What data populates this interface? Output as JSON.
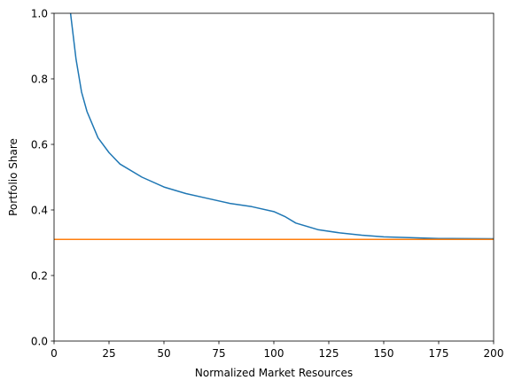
{
  "chart_data": {
    "type": "line",
    "xlabel": "Normalized Market Resources",
    "ylabel": "Portfolio Share",
    "xlim": [
      0,
      200
    ],
    "ylim": [
      0,
      1
    ],
    "xticks": [
      0,
      25,
      50,
      75,
      100,
      125,
      150,
      175,
      200
    ],
    "yticks": [
      {
        "value": 0,
        "label": "0.0"
      },
      0.2,
      0.4,
      0.6,
      0.8,
      {
        "value": 1,
        "label": "1.0"
      }
    ],
    "series": [
      {
        "color": "#1f77b4",
        "x": [
          7.5,
          10,
          12.5,
          15,
          20,
          25,
          30,
          40,
          50,
          60,
          70,
          80,
          90,
          100,
          105,
          110,
          120,
          130,
          140,
          150,
          175,
          200
        ],
        "values": [
          1.0,
          0.86,
          0.76,
          0.7,
          0.62,
          0.575,
          0.54,
          0.5,
          0.47,
          0.45,
          0.435,
          0.42,
          0.41,
          0.395,
          0.38,
          0.36,
          0.34,
          0.33,
          0.323,
          0.318,
          0.313,
          0.312
        ]
      },
      {
        "color": "#ff7f0e",
        "x": [
          0,
          200
        ],
        "values": [
          0.31,
          0.31
        ]
      }
    ]
  }
}
